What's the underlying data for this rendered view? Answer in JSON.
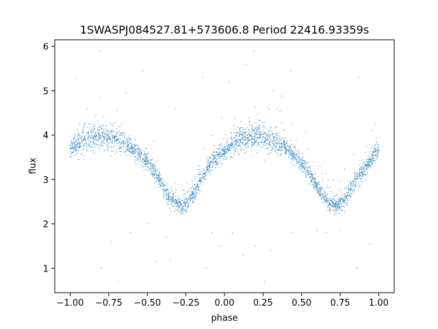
{
  "chart_data": {
    "type": "scatter",
    "title": "1SWASPJ084527.81+573606.8 Period 22416.93359s",
    "xlabel": "phase",
    "ylabel": "flux",
    "xlim": [
      -1.1,
      1.1
    ],
    "ylim": [
      0.45,
      6.15
    ],
    "x_ticks": [
      -1.0,
      -0.75,
      -0.5,
      -0.25,
      0.0,
      0.25,
      0.5,
      0.75,
      1.0
    ],
    "x_tick_labels": [
      "−1.00",
      "−0.75",
      "−0.50",
      "−0.25",
      "0.00",
      "0.25",
      "0.50",
      "0.75",
      "1.00"
    ],
    "y_ticks": [
      1,
      2,
      3,
      4,
      5,
      6
    ],
    "y_tick_labels": [
      "1",
      "2",
      "3",
      "4",
      "5",
      "6"
    ],
    "grid": false,
    "marker_color": "#1f77b4",
    "series": [
      {
        "name": "",
        "x": [
          -1.0,
          -0.95,
          -0.9,
          -0.85,
          -0.8,
          -0.75,
          -0.7,
          -0.65,
          -0.6,
          -0.55,
          -0.5,
          -0.45,
          -0.4,
          -0.35,
          -0.3,
          -0.27,
          -0.25,
          -0.2,
          -0.15,
          -0.1,
          -0.05,
          0.0,
          0.05,
          0.1,
          0.15,
          0.2,
          0.25,
          0.3,
          0.35,
          0.4,
          0.45,
          0.5,
          0.55,
          0.6,
          0.65,
          0.7,
          0.73,
          0.75,
          0.8,
          0.85,
          0.9,
          0.95,
          1.0
        ],
        "y": [
          3.7,
          3.8,
          3.85,
          3.92,
          3.97,
          3.95,
          3.9,
          3.82,
          3.7,
          3.55,
          3.4,
          3.15,
          2.85,
          2.55,
          2.42,
          2.4,
          2.45,
          2.7,
          3.0,
          3.3,
          3.5,
          3.65,
          3.78,
          3.88,
          3.93,
          3.97,
          3.95,
          3.9,
          3.82,
          3.7,
          3.55,
          3.38,
          3.15,
          2.85,
          2.55,
          2.42,
          2.4,
          2.45,
          2.7,
          2.95,
          3.2,
          3.45,
          3.65
        ]
      }
    ],
    "outliers": {
      "x": [
        -0.96,
        -0.89,
        -0.81,
        -0.8,
        -0.73,
        -0.69,
        -0.64,
        -0.61,
        -0.53,
        -0.5,
        -0.44,
        -0.38,
        -0.35,
        -0.32,
        -0.14,
        -0.12,
        -0.08,
        -0.03,
        0.03,
        0.05,
        0.12,
        0.14,
        0.19,
        0.2,
        0.26,
        0.3,
        0.34,
        0.43,
        0.44,
        0.6,
        0.66,
        0.75,
        0.86,
        0.87,
        0.94,
        0.96,
        0.98
      ],
      "y": [
        5.28,
        4.6,
        5.9,
        1.0,
        1.6,
        0.7,
        4.95,
        1.8,
        5.45,
        2.0,
        1.15,
        1.7,
        1.2,
        4.6,
        5.3,
        1.0,
        1.8,
        1.5,
        5.2,
        1.8,
        1.3,
        5.6,
        5.9,
        1.5,
        0.7,
        1.4,
        4.6,
        5.45,
        1.8,
        1.85,
        1.8,
        1.85,
        1.0,
        5.3,
        1.55,
        4.1,
        4.25
      ]
    }
  }
}
